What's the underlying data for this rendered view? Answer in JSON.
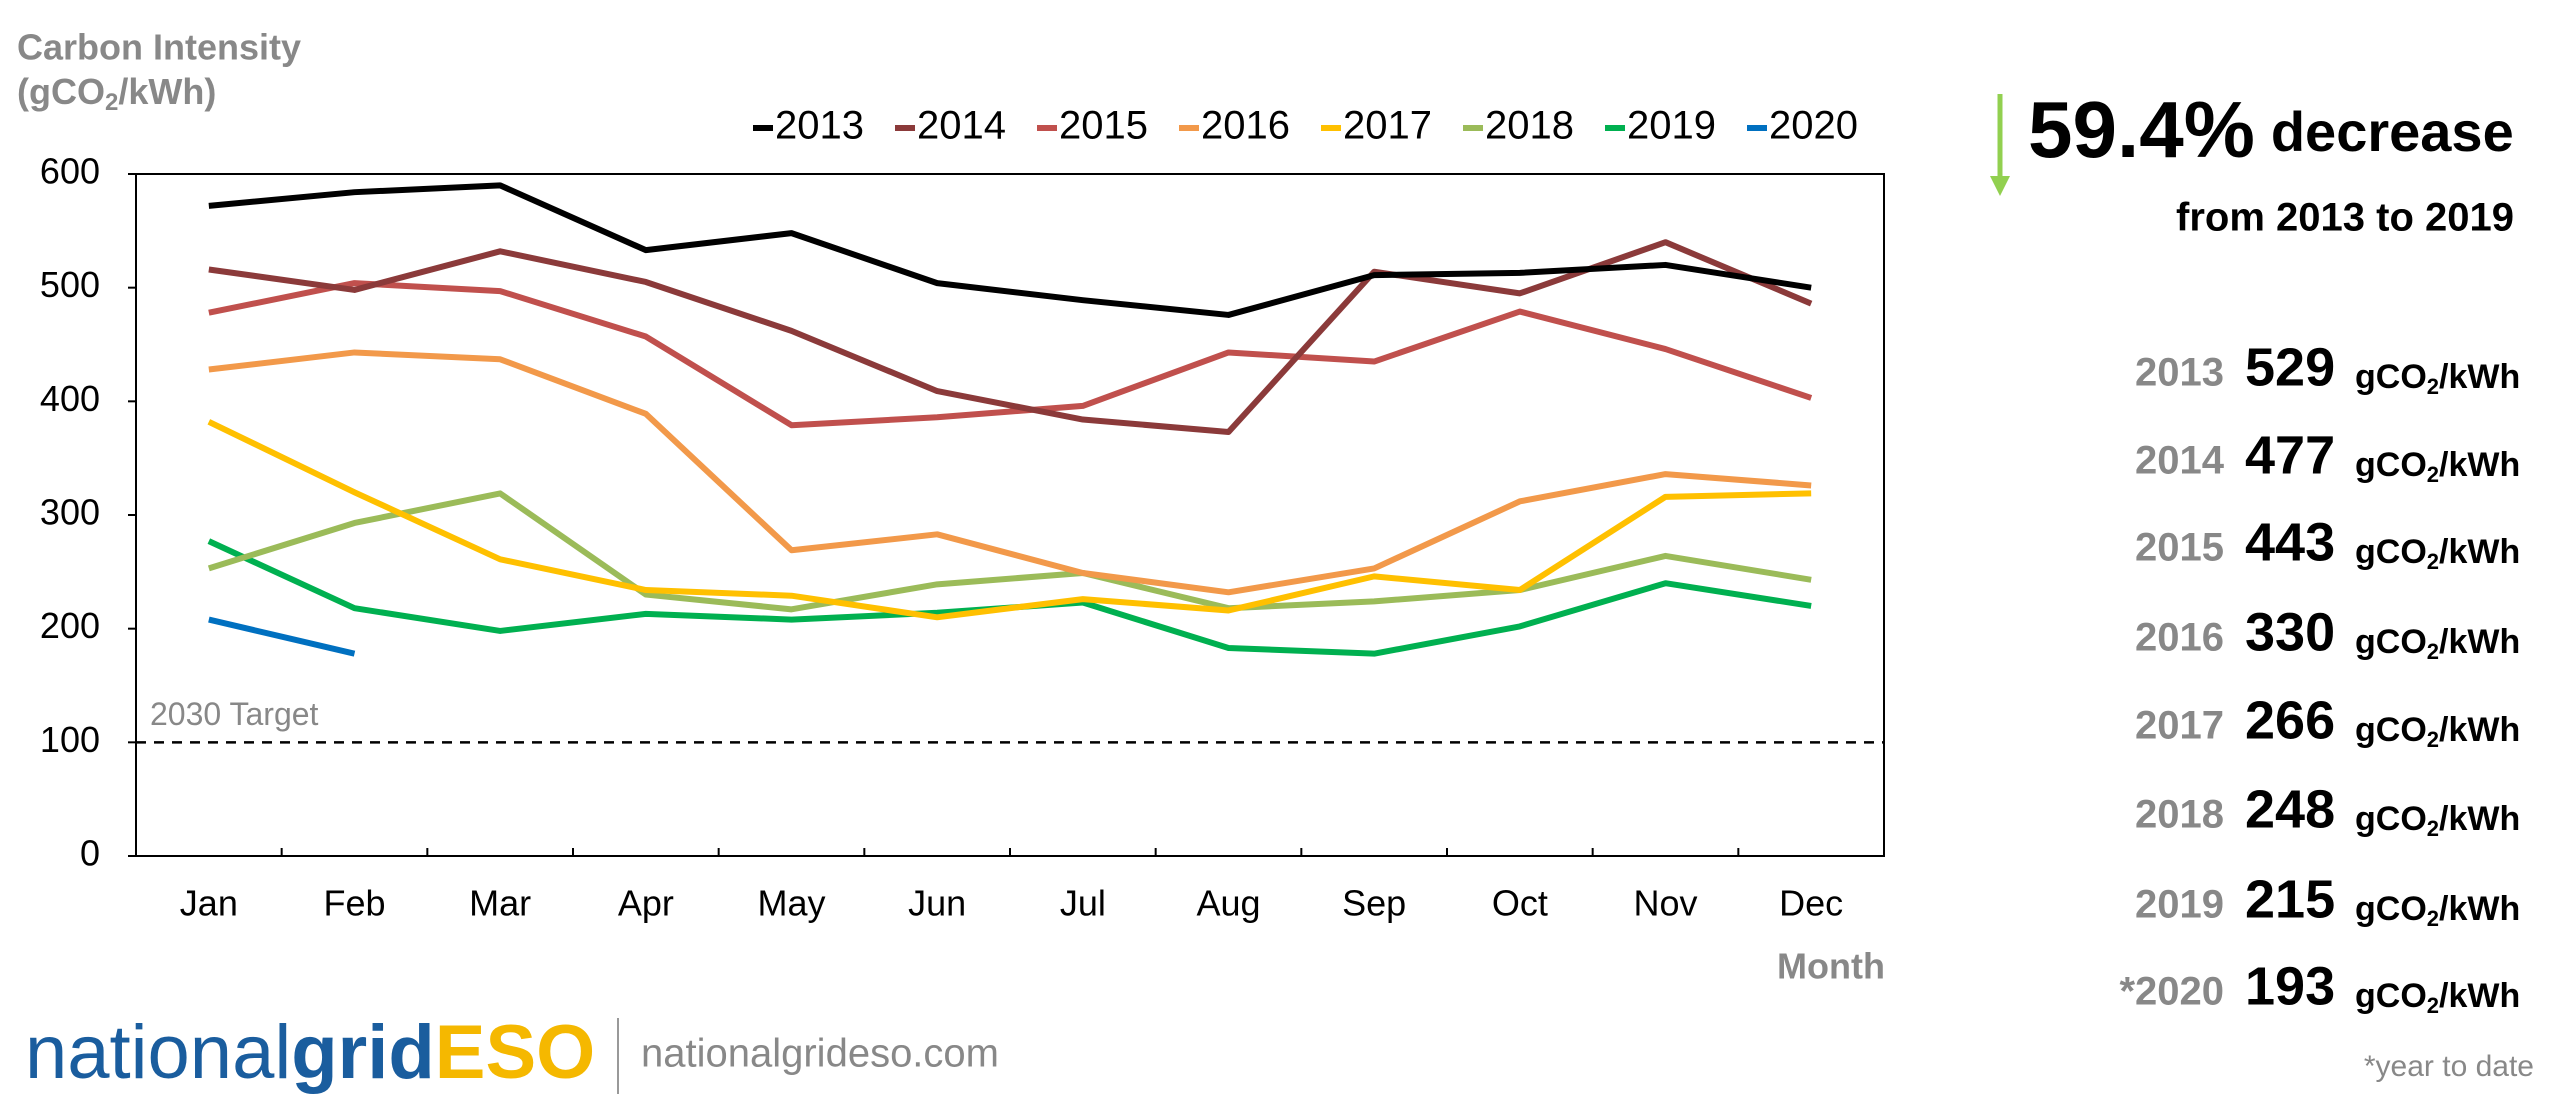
{
  "chart_data": {
    "type": "line",
    "ylabel": "Carbon Intensity",
    "yunit_parts": [
      "(gCO",
      "2",
      "/kWh)"
    ],
    "xlabel": "Month",
    "categories": [
      "Jan",
      "Feb",
      "Mar",
      "Apr",
      "May",
      "Jun",
      "Jul",
      "Aug",
      "Sep",
      "Oct",
      "Nov",
      "Dec"
    ],
    "ylim": [
      0,
      600
    ],
    "yticks": [
      0,
      100,
      200,
      300,
      400,
      500,
      600
    ],
    "target": {
      "value": 100,
      "label": "2030 Target"
    },
    "legend": "top",
    "series": [
      {
        "name": "2013",
        "color": "#000000",
        "values": [
          572,
          584,
          590,
          533,
          548,
          504,
          489,
          476,
          511,
          513,
          520,
          500
        ]
      },
      {
        "name": "2014",
        "color": "#8b3a3a",
        "values": [
          516,
          498,
          532,
          505,
          462,
          409,
          384,
          373,
          514,
          495,
          540,
          486
        ]
      },
      {
        "name": "2015",
        "color": "#c0504d",
        "values": [
          478,
          504,
          497,
          457,
          379,
          386,
          396,
          443,
          435,
          479,
          446,
          403
        ]
      },
      {
        "name": "2016",
        "color": "#f2994a",
        "values": [
          428,
          443,
          437,
          389,
          269,
          283,
          249,
          232,
          253,
          312,
          336,
          326
        ]
      },
      {
        "name": "2017",
        "color": "#ffc000",
        "values": [
          382,
          320,
          261,
          234,
          229,
          210,
          226,
          216,
          246,
          234,
          316,
          319
        ]
      },
      {
        "name": "2018",
        "color": "#9bbb59",
        "values": [
          253,
          293,
          319,
          230,
          217,
          239,
          249,
          218,
          224,
          234,
          264,
          243
        ]
      },
      {
        "name": "2019",
        "color": "#00b050",
        "values": [
          277,
          218,
          198,
          213,
          208,
          214,
          223,
          183,
          178,
          202,
          240,
          220
        ]
      },
      {
        "name": "2020",
        "color": "#0070c0",
        "values": [
          208,
          178,
          null,
          null,
          null,
          null,
          null,
          null,
          null,
          null,
          null,
          null
        ]
      }
    ]
  },
  "summary": {
    "headline": "59.4%",
    "headline_word": "decrease",
    "subline": "from 2013 to 2019",
    "unit_parts": [
      "gCO",
      "2",
      "/kWh"
    ],
    "rows": [
      {
        "year": "2013",
        "value": 529
      },
      {
        "year": "2014",
        "value": 477
      },
      {
        "year": "2015",
        "value": 443
      },
      {
        "year": "2016",
        "value": 330
      },
      {
        "year": "2017",
        "value": 266
      },
      {
        "year": "2018",
        "value": 248
      },
      {
        "year": "2019",
        "value": 215
      },
      {
        "year": "*2020",
        "value": 193
      }
    ],
    "footnote": "*year to date"
  },
  "logo": {
    "part1": "national",
    "part2": "grid",
    "part3": "ESO",
    "url": "nationalgrideso.com"
  }
}
